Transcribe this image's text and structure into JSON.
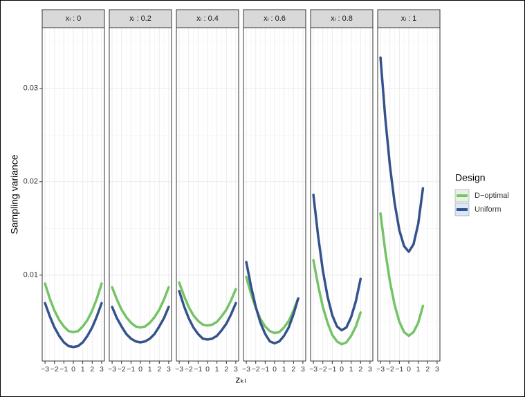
{
  "chart_data": {
    "type": "line",
    "y_label": "Sampling variance",
    "x_label": "zₖₗ",
    "legend": {
      "title": "Design",
      "position": "right"
    },
    "ylim": [
      0.0008,
      0.0365
    ],
    "yticks": [
      0.01,
      0.02,
      0.03
    ],
    "xlim": [
      -3.3,
      3.3
    ],
    "xticks": [
      {
        "value": -3,
        "label": "−3"
      },
      {
        "value": -2,
        "label": "−2"
      },
      {
        "value": -1,
        "label": "−1"
      },
      0,
      1,
      2,
      3
    ],
    "grid": true,
    "x": [
      -3,
      -2.5,
      -2,
      -1.5,
      -1,
      -0.5,
      0,
      0.5,
      1,
      1.5,
      2,
      2.5,
      3
    ],
    "series": [
      {
        "name": "D−optimal",
        "color": "#74c365"
      },
      {
        "name": "Uniform",
        "color": "#34528b"
      }
    ],
    "facets": [
      {
        "title": "xₗ : 0",
        "values": [
          [
            0.0091,
            0.0075,
            0.0062,
            0.0052,
            0.0045,
            0.004,
            0.0039,
            0.004,
            0.0045,
            0.0052,
            0.0062,
            0.0075,
            0.0091
          ],
          [
            0.007,
            0.0056,
            0.0044,
            0.0035,
            0.0028,
            0.0024,
            0.0023,
            0.0024,
            0.0028,
            0.0035,
            0.0044,
            0.0056,
            0.007
          ]
        ]
      },
      {
        "title": "xₗ : 0.2",
        "values": [
          [
            0.0087,
            0.0074,
            0.0063,
            0.0055,
            0.0049,
            0.0045,
            0.0044,
            0.0045,
            0.0049,
            0.0055,
            0.0063,
            0.0074,
            0.0087
          ],
          [
            0.0066,
            0.0054,
            0.0045,
            0.0037,
            0.0032,
            0.0029,
            0.0028,
            0.0029,
            0.0032,
            0.0037,
            0.0045,
            0.0054,
            0.0066
          ]
        ]
      },
      {
        "title": "xₗ : 0.4",
        "values": [
          [
            0.0092,
            0.0078,
            0.0066,
            0.0057,
            0.0051,
            0.0047,
            0.0046,
            0.0047,
            0.005,
            0.0056,
            0.0063,
            0.0073,
            0.0085
          ],
          [
            0.0083,
            0.0067,
            0.0054,
            0.0044,
            0.0037,
            0.0032,
            0.0031,
            0.0032,
            0.0035,
            0.0041,
            0.0048,
            0.0058,
            0.007
          ]
        ]
      },
      {
        "title": "xₗ : 0.6",
        "values": [
          [
            0.0098,
            0.008,
            0.0065,
            0.0053,
            0.0045,
            0.004,
            0.0038,
            0.0039,
            0.0044,
            0.0051,
            0.0062,
            0.0075,
            null
          ],
          [
            0.0114,
            0.0088,
            0.0066,
            0.0049,
            0.0037,
            0.0029,
            0.0027,
            0.0029,
            0.0035,
            0.0044,
            0.0058,
            0.0075,
            null
          ]
        ]
      },
      {
        "title": "xₗ : 0.8",
        "values": [
          [
            0.0116,
            0.0089,
            0.0066,
            0.0049,
            0.0036,
            0.0029,
            0.0026,
            0.0028,
            0.0035,
            0.0045,
            0.006,
            null,
            null
          ],
          [
            0.0186,
            0.0142,
            0.0105,
            0.0077,
            0.0057,
            0.0045,
            0.0041,
            0.0044,
            0.0055,
            0.0072,
            0.0096,
            null,
            null
          ]
        ]
      },
      {
        "title": "xₗ : 1",
        "values": [
          [
            0.0166,
            0.0126,
            0.0093,
            0.0068,
            0.005,
            0.0039,
            0.0035,
            0.0039,
            0.0049,
            0.0067,
            null,
            null,
            null
          ],
          [
            0.0333,
            0.0269,
            0.0217,
            0.0177,
            0.0148,
            0.0131,
            0.0125,
            0.0133,
            0.0155,
            0.0193,
            null,
            null,
            null
          ]
        ]
      }
    ]
  }
}
